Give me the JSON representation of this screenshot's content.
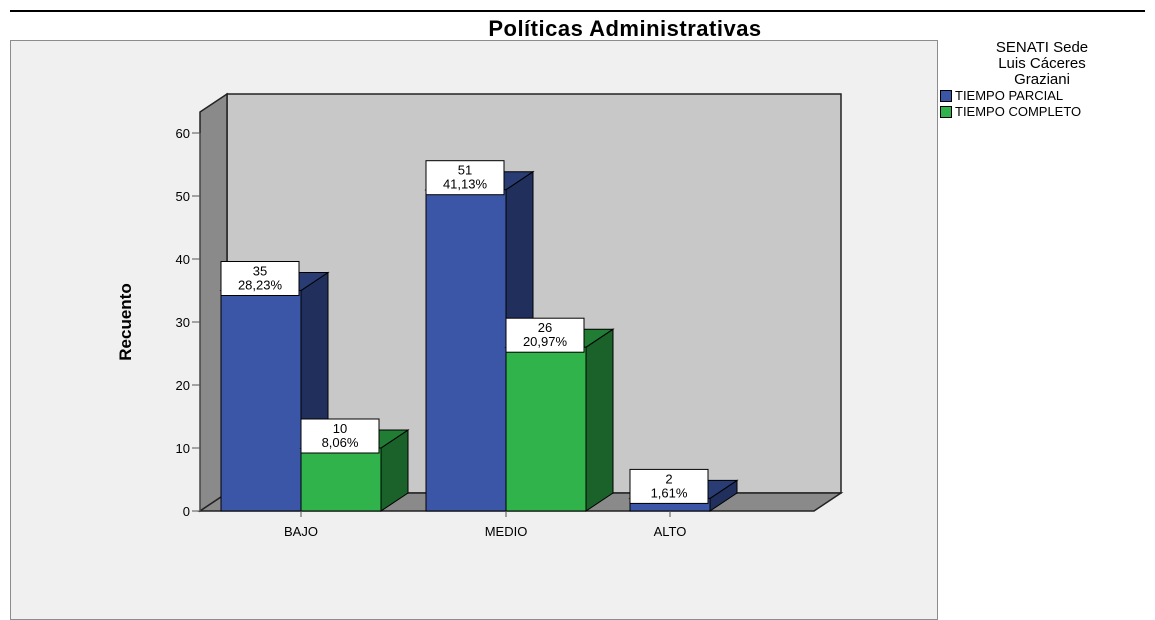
{
  "chart_data": {
    "type": "bar",
    "title": "Políticas Administrativas",
    "ylabel": "Recuento",
    "xlabel": "",
    "categories": [
      "BAJO",
      "MEDIO",
      "ALTO"
    ],
    "ylim": [
      0,
      60
    ],
    "yticks": [
      0,
      10,
      20,
      30,
      40,
      50,
      60
    ],
    "yticklabels": [
      "0",
      "10",
      "20",
      "30",
      "40",
      "50",
      "60"
    ],
    "legend": {
      "title": [
        "SENATI Sede",
        "Luis Cáceres",
        "Graziani"
      ],
      "placement": "right"
    },
    "series": [
      {
        "name": "TIEMPO PARCIAL",
        "color": "#3b56a6",
        "values": [
          35,
          51,
          2
        ],
        "labels": [
          [
            "35",
            "28,23%"
          ],
          [
            "51",
            "41,13%"
          ],
          [
            "2",
            "1,61%"
          ]
        ]
      },
      {
        "name": "TIEMPO COMPLETO",
        "color": "#2fb34a",
        "values": [
          10,
          26,
          null
        ],
        "labels": [
          [
            "10",
            "8,06%"
          ],
          [
            "26",
            "20,97%"
          ],
          null
        ]
      }
    ],
    "style": "3d"
  }
}
